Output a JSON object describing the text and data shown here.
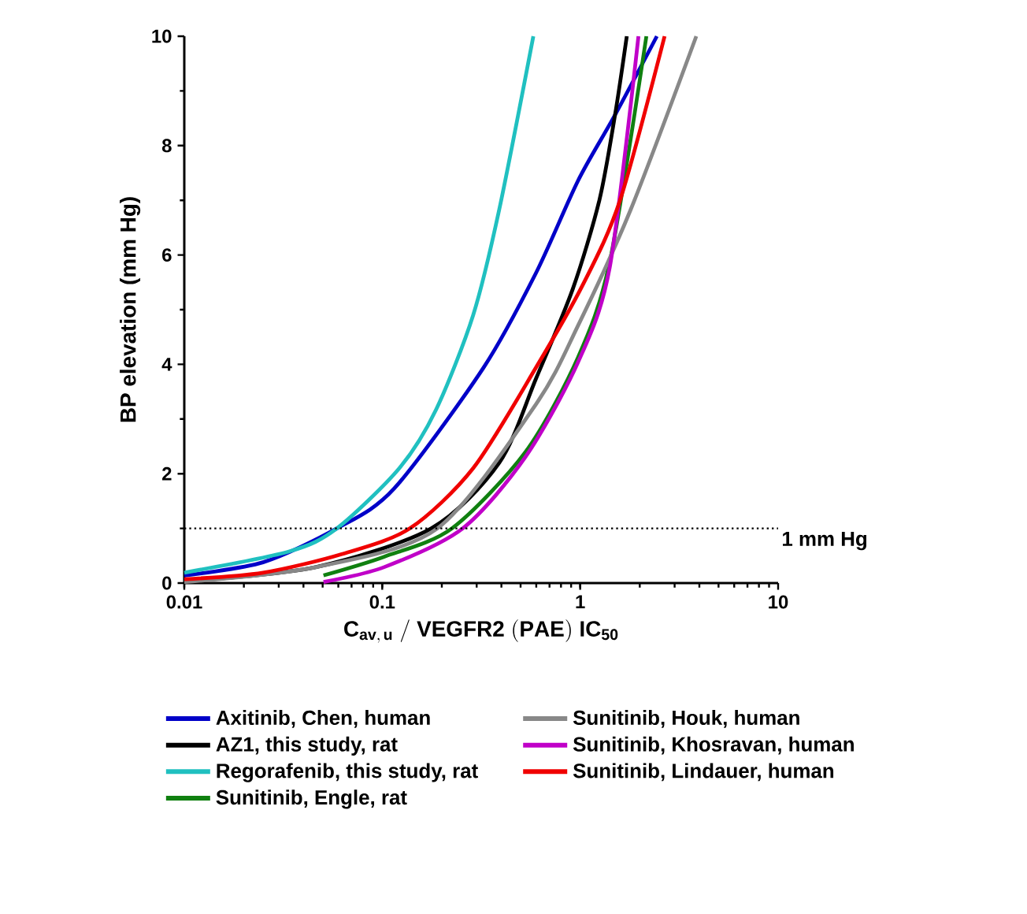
{
  "chart_data": {
    "type": "line",
    "xlabel": "\\mathbf{C_{av,\\,u}\\ /\\ VEGFR2\\ (PAE)\\ IC_{50}}",
    "ylabel": "BP elevation (mm Hg)",
    "log": "x",
    "xlim": [
      0.01,
      10
    ],
    "ylim": [
      0,
      10
    ],
    "xticks": [
      0.01,
      0.1,
      1,
      10
    ],
    "yticks": [
      0,
      2,
      4,
      6,
      8,
      10
    ],
    "grid": false,
    "legend": "bottom",
    "marker": "none",
    "line_style": "solid",
    "ref_lines": [
      {
        "axis": "y",
        "value": 1,
        "label": "1 mm Hg",
        "color": "#000000",
        "line_style": "dotted"
      }
    ],
    "series": [
      {
        "name": "Axitinib, Chen, human",
        "color": "#0000c8",
        "x": [
          0.01,
          0.025,
          0.059,
          0.115,
          0.325,
          0.598,
          0.976,
          1.5,
          2.44
        ],
        "values": [
          0.14,
          0.38,
          1.0,
          1.73,
          3.94,
          5.67,
          7.36,
          8.56,
          10
        ]
      },
      {
        "name": "AZ1, this study, rat",
        "color": "#000000",
        "x": [
          0.01,
          0.046,
          0.177,
          0.39,
          0.6,
          0.918,
          1.25,
          1.5,
          1.72
        ],
        "values": [
          0.03,
          0.29,
          1.0,
          2.2,
          3.75,
          5.38,
          7.0,
          8.56,
          10
        ]
      },
      {
        "name": "Regorafenib, this study, rat",
        "color": "#20c0c0",
        "x": [
          0.01,
          0.034,
          0.059,
          0.122,
          0.187,
          0.288,
          0.39,
          0.58
        ],
        "values": [
          0.19,
          0.58,
          1.0,
          2.1,
          3.17,
          4.9,
          6.83,
          10
        ]
      },
      {
        "name": "Sunitinib, Engle, rat",
        "color": "#108010",
        "x": [
          0.0505,
          0.102,
          0.225,
          0.53,
          0.976,
          1.41,
          2.16
        ],
        "values": [
          0.14,
          0.48,
          1.0,
          2.4,
          4.13,
          5.87,
          10
        ]
      },
      {
        "name": "Sunitinib, Houk, human",
        "color": "#888888",
        "x": [
          0.01,
          0.046,
          0.19,
          0.598,
          0.976,
          1.8,
          3.86
        ],
        "values": [
          0.02,
          0.29,
          1.0,
          3.27,
          4.71,
          6.83,
          10
        ]
      },
      {
        "name": "Sunitinib, Khosravan, human",
        "color": "#c000c8",
        "x": [
          0.0505,
          0.102,
          0.255,
          0.53,
          0.976,
          1.41,
          1.97
        ],
        "values": [
          0.02,
          0.29,
          1.0,
          2.31,
          4.04,
          5.77,
          10
        ]
      },
      {
        "name": "Sunitinib, Lindauer, human",
        "color": "#f00000",
        "x": [
          0.01,
          0.025,
          0.0625,
          0.138,
          0.288,
          0.598,
          1.04,
          1.59,
          2.67
        ],
        "values": [
          0.07,
          0.19,
          0.53,
          1.0,
          2.1,
          3.94,
          5.48,
          7.0,
          10
        ]
      }
    ]
  }
}
